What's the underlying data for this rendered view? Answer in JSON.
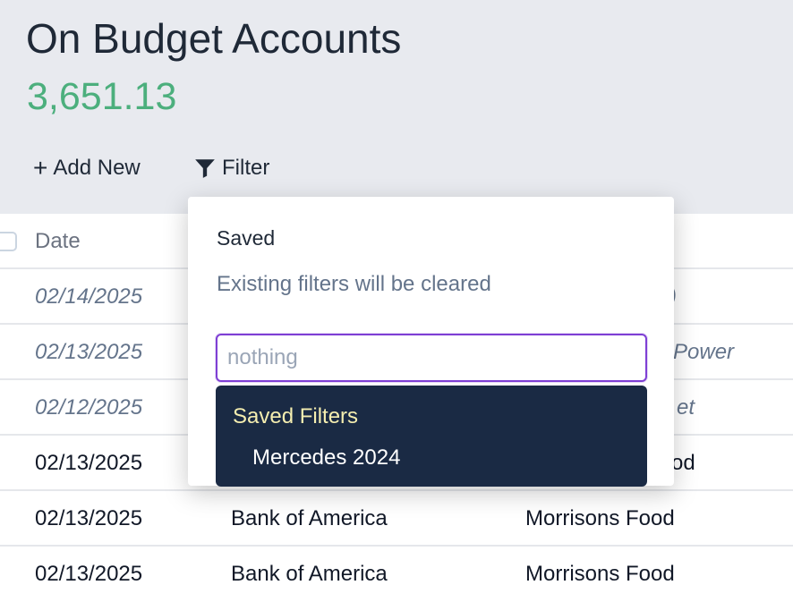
{
  "header": {
    "title": "On Budget Accounts",
    "balance": "3,651.13",
    "add_new": "Add New",
    "filter": "Filter"
  },
  "table": {
    "headers": {
      "date": "Date"
    },
    "rows": [
      {
        "date": "02/14/2025",
        "payee_visible": ")",
        "italic": true
      },
      {
        "date": "02/13/2025",
        "payee_visible": "Power",
        "italic": true
      },
      {
        "date": "02/12/2025",
        "payee_visible": "et",
        "italic": true
      },
      {
        "date": "02/13/2025",
        "payee_visible": "od",
        "italic": false
      },
      {
        "date": "02/13/2025",
        "account": "Bank of America",
        "payee": "Morrisons Food",
        "italic": false
      }
    ]
  },
  "popup": {
    "title": "Saved",
    "description": "Existing filters will be cleared",
    "input_placeholder": "nothing",
    "dropdown": {
      "header": "Saved Filters",
      "items": [
        "Mercedes 2024"
      ]
    }
  },
  "colors": {
    "balance": "#4caf7d",
    "focus_border": "#7e3fd4",
    "dropdown_bg": "#1a2a44",
    "dropdown_header": "#f5eeb0"
  }
}
